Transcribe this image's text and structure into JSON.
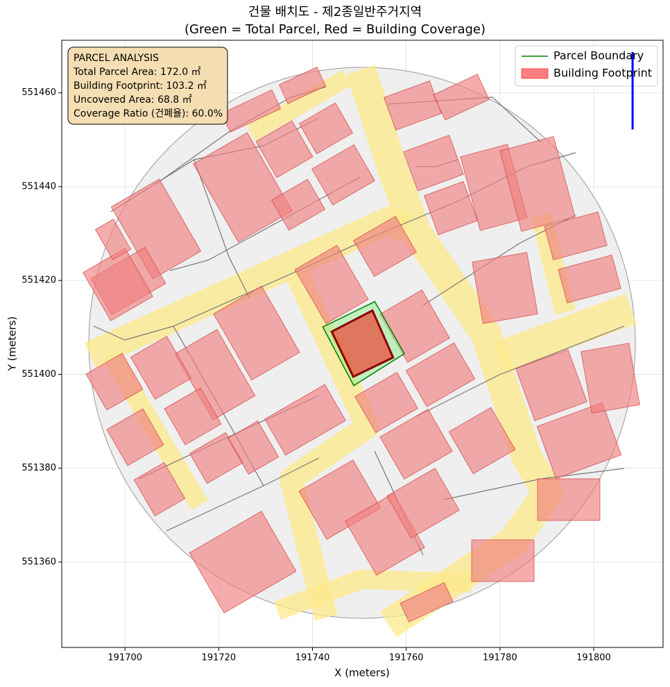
{
  "chart_data": {
    "type": "polygon",
    "title": "건물 배치도 - 제2종일반주거지역",
    "subtitle": "(Green = Total Parcel, Red = Building Coverage)",
    "xlabel": "X (meters)",
    "ylabel": "Y (meters)",
    "xlim": [
      191686.5,
      191814.8
    ],
    "ylim": [
      551341.8,
      551471.2
    ],
    "xticks": [
      191700,
      191720,
      191740,
      191760,
      191780,
      191800
    ],
    "yticks": [
      551360,
      551380,
      551400,
      551420,
      551440,
      551460
    ],
    "grid": true,
    "legend": "upper right",
    "series": [
      {
        "name": "Parcel Boundary",
        "color": "#008000",
        "fill": "#90ee90",
        "x": [
          191742.2,
          191753.3,
          191759.6,
          191748.8
        ],
        "y": [
          551410.1,
          551415.5,
          551404.4,
          551397.6
        ]
      },
      {
        "name": "Building Footprint",
        "color": "#8b0000",
        "fill": "#ff0000",
        "x": [
          191744.1,
          191752.8,
          191757.2,
          191748.7
        ],
        "y": [
          551409.1,
          551413.6,
          551403.6,
          551399.5
        ]
      }
    ],
    "north_line": {
      "color": "#0000ff",
      "x": [
        191808.3,
        191808.3
      ],
      "y": [
        551452.2,
        551468.7
      ]
    },
    "annotation": [
      "PARCEL ANALYSIS",
      "Total Parcel Area: 172.0 ㎡",
      "Building Footprint: 103.2 ㎡",
      "Uncovered Area: 68.8 ㎡",
      "Coverage Ratio (건폐율): 60.0%"
    ]
  }
}
